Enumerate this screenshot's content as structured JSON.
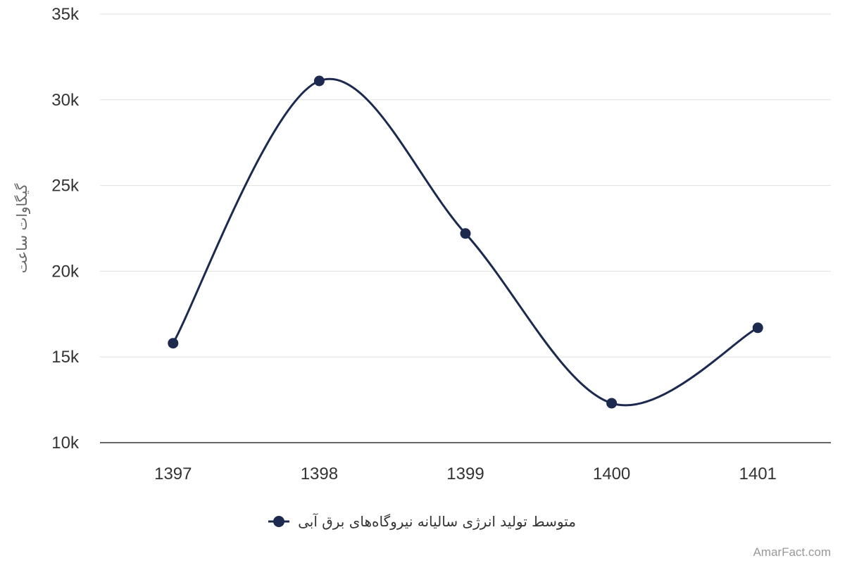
{
  "chart_data": {
    "type": "line",
    "categories": [
      "1397",
      "1398",
      "1399",
      "1400",
      "1401"
    ],
    "series": [
      {
        "name": "متوسط تولید انرژی سالیانه نیروگاه‌های برق آبی",
        "values": [
          15800,
          31100,
          22200,
          12300,
          16700
        ],
        "color": "#1c2a4f"
      }
    ],
    "ylabel": "گیگاوات ساعت",
    "xlabel": "",
    "ylim": [
      10000,
      35000
    ],
    "y_ticks": [
      {
        "value": 10000,
        "label": "10k"
      },
      {
        "value": 15000,
        "label": "15k"
      },
      {
        "value": 20000,
        "label": "20k"
      },
      {
        "value": 25000,
        "label": "25k"
      },
      {
        "value": 30000,
        "label": "30k"
      },
      {
        "value": 35000,
        "label": "35k"
      }
    ],
    "grid": true,
    "smooth": true,
    "legend_position": "bottom-center"
  },
  "credit": "AmarFact.com"
}
